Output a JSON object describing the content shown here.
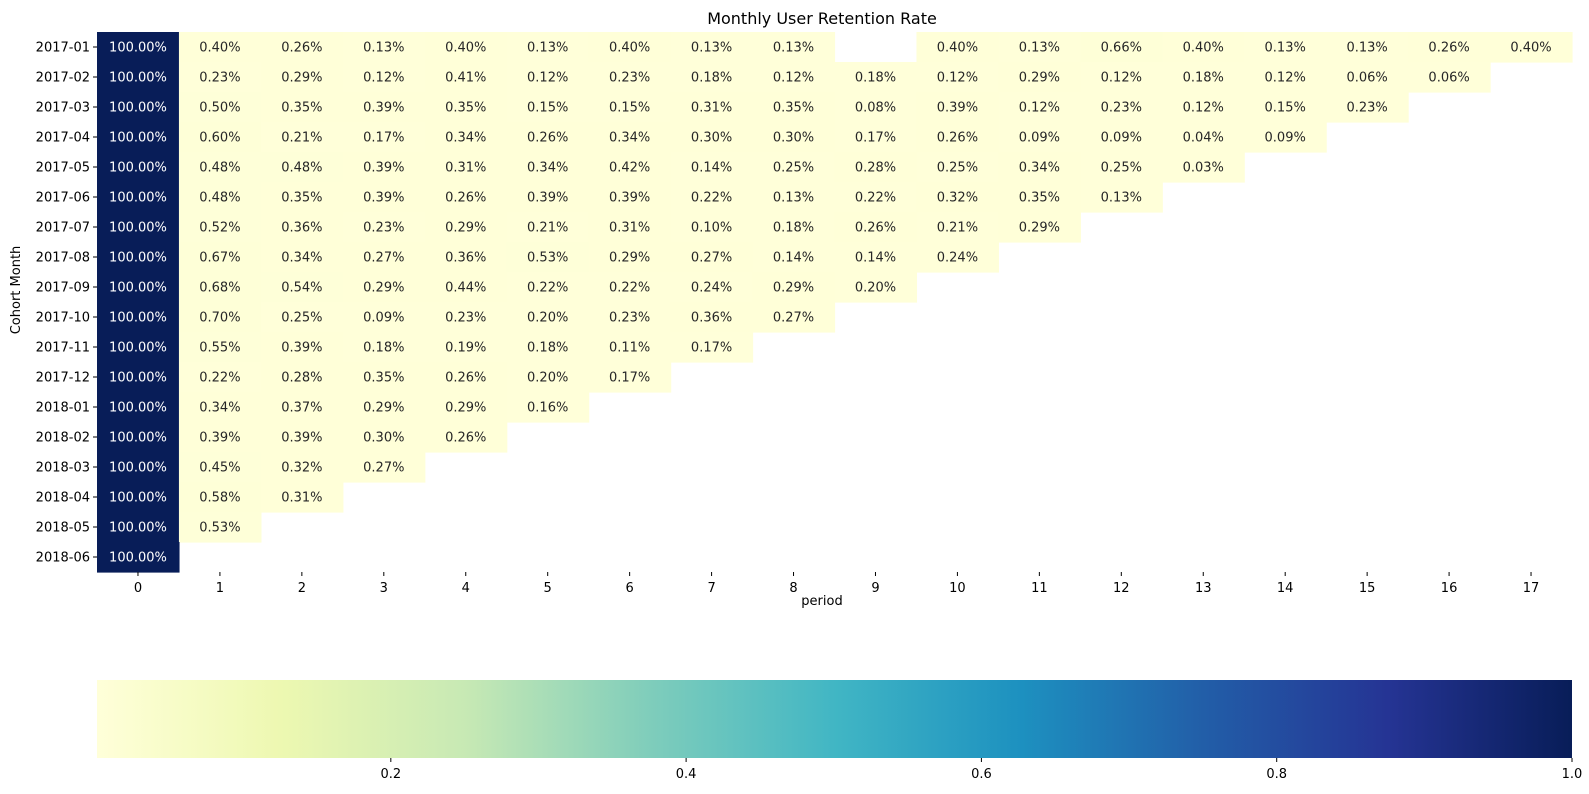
{
  "chart_data": {
    "type": "heatmap",
    "title": "Monthly User Retention Rate",
    "xlabel": "period",
    "ylabel": "Cohort Month",
    "x": [
      0,
      1,
      2,
      3,
      4,
      5,
      6,
      7,
      8,
      9,
      10,
      11,
      12,
      13,
      14,
      15,
      16,
      17
    ],
    "y": [
      "2017-01",
      "2017-02",
      "2017-03",
      "2017-04",
      "2017-05",
      "2017-06",
      "2017-07",
      "2017-08",
      "2017-09",
      "2017-10",
      "2017-11",
      "2017-12",
      "2018-01",
      "2018-02",
      "2018-03",
      "2018-04",
      "2018-05",
      "2018-06"
    ],
    "value_format": "percent, 2 decimals",
    "values": [
      [
        1.0,
        0.004,
        0.0026,
        0.0013,
        0.004,
        0.0013,
        0.004,
        0.0013,
        0.0013,
        null,
        0.004,
        0.0013,
        0.0066,
        0.004,
        0.0013,
        0.0013,
        0.0026,
        0.004
      ],
      [
        1.0,
        0.0023,
        0.0029,
        0.0012,
        0.0041,
        0.0012,
        0.0023,
        0.0018,
        0.0012,
        0.0018,
        0.0012,
        0.0029,
        0.0012,
        0.0018,
        0.0012,
        0.0006,
        0.0006
      ],
      [
        1.0,
        0.005,
        0.0035,
        0.0039,
        0.0035,
        0.0015,
        0.0015,
        0.0031,
        0.0035,
        0.0008,
        0.0039,
        0.0012,
        0.0023,
        0.0012,
        0.0015,
        0.0023
      ],
      [
        1.0,
        0.006,
        0.0021,
        0.0017,
        0.0034,
        0.0026,
        0.0034,
        0.003,
        0.003,
        0.0017,
        0.0026,
        0.0009,
        0.0009,
        0.0004,
        0.0009
      ],
      [
        1.0,
        0.0048,
        0.0048,
        0.0039,
        0.0031,
        0.0034,
        0.0042,
        0.0014,
        0.0025,
        0.0028,
        0.0025,
        0.0034,
        0.0025,
        0.0003
      ],
      [
        1.0,
        0.0048,
        0.0035,
        0.0039,
        0.0026,
        0.0039,
        0.0039,
        0.0022,
        0.0013,
        0.0022,
        0.0032,
        0.0035,
        0.0013
      ],
      [
        1.0,
        0.0052,
        0.0036,
        0.0023,
        0.0029,
        0.0021,
        0.0031,
        0.001,
        0.0018,
        0.0026,
        0.0021,
        0.0029
      ],
      [
        1.0,
        0.0067,
        0.0034,
        0.0027,
        0.0036,
        0.0053,
        0.0029,
        0.0027,
        0.0014,
        0.0014,
        0.0024
      ],
      [
        1.0,
        0.0068,
        0.0054,
        0.0029,
        0.0044,
        0.0022,
        0.0022,
        0.0024,
        0.0029,
        0.002
      ],
      [
        1.0,
        0.007,
        0.0025,
        0.0009,
        0.0023,
        0.002,
        0.0023,
        0.0036,
        0.0027
      ],
      [
        1.0,
        0.0055,
        0.0039,
        0.0018,
        0.0019,
        0.0018,
        0.0011,
        0.0017
      ],
      [
        1.0,
        0.0022,
        0.0028,
        0.0035,
        0.0026,
        0.002,
        0.0017
      ],
      [
        1.0,
        0.0034,
        0.0037,
        0.0029,
        0.0029,
        0.0016
      ],
      [
        1.0,
        0.0039,
        0.0039,
        0.003,
        0.0026
      ],
      [
        1.0,
        0.0045,
        0.0032,
        0.0027
      ],
      [
        1.0,
        0.0058,
        0.0031
      ],
      [
        1.0,
        0.0053
      ],
      [
        1.0
      ]
    ],
    "colorscale": [
      "#ffffd9",
      "#edf8b1",
      "#c7e9b4",
      "#7fcdbb",
      "#41b6c4",
      "#1d91c0",
      "#225ea8",
      "#253494",
      "#081d58"
    ],
    "colorbar": {
      "orientation": "horizontal",
      "range": [
        0.001,
        1.0
      ],
      "ticks": [
        0.2,
        0.4,
        0.6,
        0.8,
        1.0
      ],
      "tick_labels": [
        "0.2",
        "0.4",
        "0.6",
        "0.8",
        "1.0"
      ]
    },
    "grid": false
  }
}
